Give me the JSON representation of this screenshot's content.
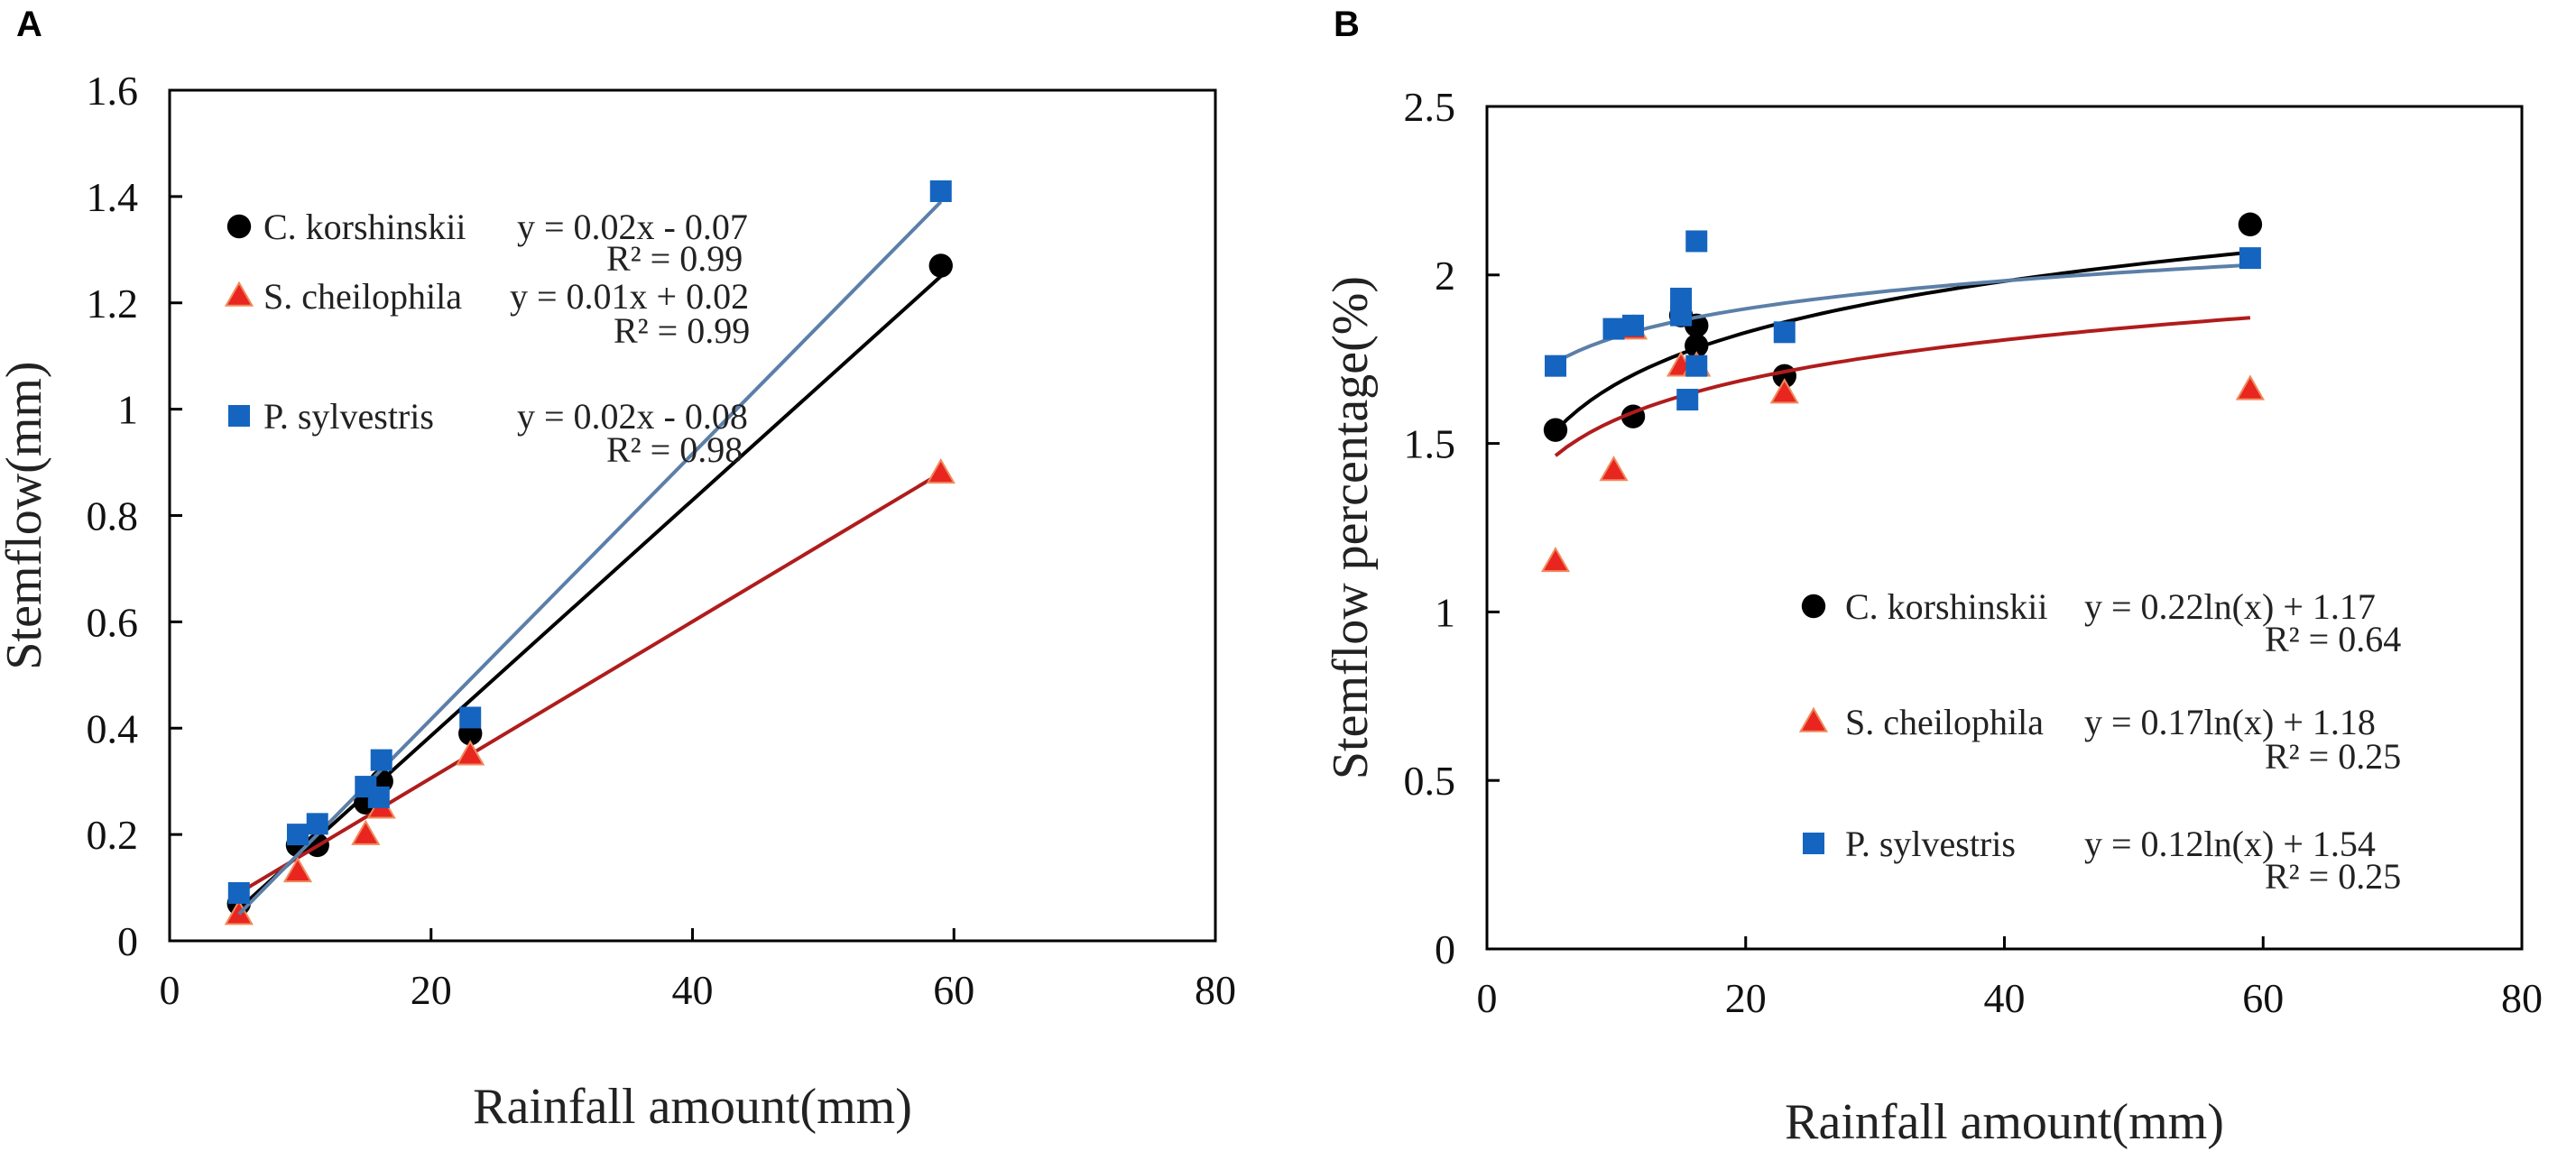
{
  "chart_data": [
    {
      "type": "scatter",
      "panel_label": "A",
      "xlabel": "Rainfall amount(mm)",
      "ylabel": "Stemflow(mm)",
      "xlim": [
        0,
        80
      ],
      "ylim": [
        0,
        1.6
      ],
      "xticks": [
        0,
        20,
        40,
        60,
        80
      ],
      "yticks": [
        0,
        0.2,
        0.4,
        0.6,
        0.8,
        1,
        1.2,
        1.4,
        1.6
      ],
      "yticklabels": [
        "0",
        "0.2",
        "0.4",
        "0.6",
        "0.8",
        "1",
        "1.2",
        "1.4",
        "1.6"
      ],
      "legend_placement": "top-left",
      "series": [
        {
          "name": "C. korshinskii",
          "marker": "circle",
          "color": "#000000",
          "line_color": "#000000",
          "equation": "y = 0.02x - 0.07",
          "r2": "R² = 0.99",
          "fit": {
            "kind": "linear",
            "from": [
              5.3,
              0.06
            ],
            "to": [
              59,
              1.25
            ]
          },
          "points": [
            [
              5.3,
              0.07
            ],
            [
              9.8,
              0.18
            ],
            [
              11.3,
              0.18
            ],
            [
              15,
              0.26
            ],
            [
              16.2,
              0.3
            ],
            [
              23,
              0.39
            ],
            [
              59,
              1.27
            ]
          ]
        },
        {
          "name": "S. cheilophila",
          "marker": "triangle",
          "color": "#e8251f",
          "line_color": "#b01c1c",
          "equation": "y = 0.01x + 0.02",
          "r2": "R² = 0.99",
          "fit": {
            "kind": "linear",
            "from": [
              5.3,
              0.09
            ],
            "to": [
              59,
              0.88
            ]
          },
          "points": [
            [
              5.3,
              0.05
            ],
            [
              9.8,
              0.13
            ],
            [
              15,
              0.2
            ],
            [
              16.2,
              0.25
            ],
            [
              23,
              0.35
            ],
            [
              59,
              0.88
            ]
          ]
        },
        {
          "name": "P. sylvestris",
          "marker": "square",
          "color": "#1565c0",
          "line_color": "#5b7fa8",
          "equation": "y = 0.02x - 0.08",
          "r2": "R² = 0.98",
          "fit": {
            "kind": "linear",
            "from": [
              5.3,
              0.05
            ],
            "to": [
              59,
              1.39
            ]
          },
          "points": [
            [
              5.3,
              0.09
            ],
            [
              9.8,
              0.2
            ],
            [
              11.3,
              0.22
            ],
            [
              15,
              0.29
            ],
            [
              16.2,
              0.34
            ],
            [
              16,
              0.27
            ],
            [
              23,
              0.42
            ],
            [
              59,
              1.41
            ]
          ]
        }
      ]
    },
    {
      "type": "scatter",
      "panel_label": "B",
      "xlabel": "Rainfall amount(mm)",
      "ylabel": "Stemflow percentage(%)",
      "xlim": [
        0,
        80
      ],
      "ylim": [
        0,
        2.5
      ],
      "xticks": [
        0,
        20,
        40,
        60,
        80
      ],
      "yticks": [
        0,
        0.5,
        1,
        1.5,
        2,
        2.5
      ],
      "yticklabels": [
        "0",
        "0.5",
        "1",
        "1.5",
        "2",
        "2.5"
      ],
      "legend_placement": "bottom-right",
      "series": [
        {
          "name": "C. korshinskii",
          "marker": "circle",
          "color": "#000000",
          "line_color": "#000000",
          "equation": "y = 0.22ln(x) + 1.17",
          "r2": "R² = 0.64",
          "fit": {
            "kind": "log",
            "a": 0.22,
            "b": 1.17,
            "range": [
              5.3,
              59
            ]
          },
          "points": [
            [
              5.3,
              1.54
            ],
            [
              11.3,
              1.58
            ],
            [
              15,
              1.88
            ],
            [
              16.2,
              1.85
            ],
            [
              16.2,
              1.79
            ],
            [
              23,
              1.7
            ],
            [
              59,
              2.15
            ]
          ]
        },
        {
          "name": "S. cheilophila",
          "marker": "triangle",
          "color": "#e8251f",
          "line_color": "#b01c1c",
          "equation": "y = 0.17ln(x) + 1.18",
          "r2": "R² = 0.25",
          "fit": {
            "kind": "log",
            "a": 0.17,
            "b": 1.18,
            "range": [
              5.3,
              59
            ]
          },
          "points": [
            [
              5.3,
              1.15
            ],
            [
              9.8,
              1.42
            ],
            [
              11.3,
              1.84
            ],
            [
              15,
              1.73
            ],
            [
              16.2,
              1.73
            ],
            [
              23,
              1.65
            ],
            [
              59,
              1.66
            ]
          ]
        },
        {
          "name": "P. sylvestris",
          "marker": "square",
          "color": "#1565c0",
          "line_color": "#5b7fa8",
          "equation": "y = 0.12ln(x) + 1.54",
          "r2": "R² = 0.25",
          "fit": {
            "kind": "log",
            "a": 0.12,
            "b": 1.54,
            "range": [
              5.3,
              59
            ]
          },
          "points": [
            [
              5.3,
              1.73
            ],
            [
              9.8,
              1.84
            ],
            [
              11.3,
              1.85
            ],
            [
              15,
              1.93
            ],
            [
              15,
              1.88
            ],
            [
              16.2,
              2.1
            ],
            [
              15.5,
              1.63
            ],
            [
              16.2,
              1.73
            ],
            [
              23,
              1.83
            ],
            [
              59,
              2.05
            ]
          ]
        }
      ]
    }
  ]
}
